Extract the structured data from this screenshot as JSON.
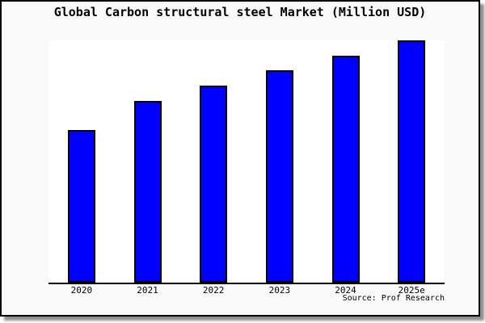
{
  "window": {
    "outer_background": "#ffffff",
    "panel_background": "#f9f9f9",
    "panel_border_color": "#000000",
    "shadow_color": "#8f8f8f"
  },
  "chart_data": {
    "type": "bar",
    "title": "Global Carbon structural steel Market (Million USD)",
    "categories": [
      "2020",
      "2021",
      "2022",
      "2023",
      "2024",
      "2025e"
    ],
    "values": [
      63.0,
      75.0,
      81.3,
      87.7,
      93.7,
      100.0
    ],
    "value_note": "No y-axis, gridlines or data labels are shown in the image; values are estimated from bar pixel heights, normalized so 2025e = 100.",
    "xlabel": "",
    "ylabel": "",
    "ylim": [
      0,
      100
    ],
    "grid": false,
    "legend": "none",
    "bar_color": "#0000ff",
    "bar_border_color": "#000000",
    "plot_background": "#ffffff",
    "axis_color": "#000000",
    "tick_label_color": "#000000"
  },
  "footer": {
    "source_label": "Source: Prof Research"
  }
}
